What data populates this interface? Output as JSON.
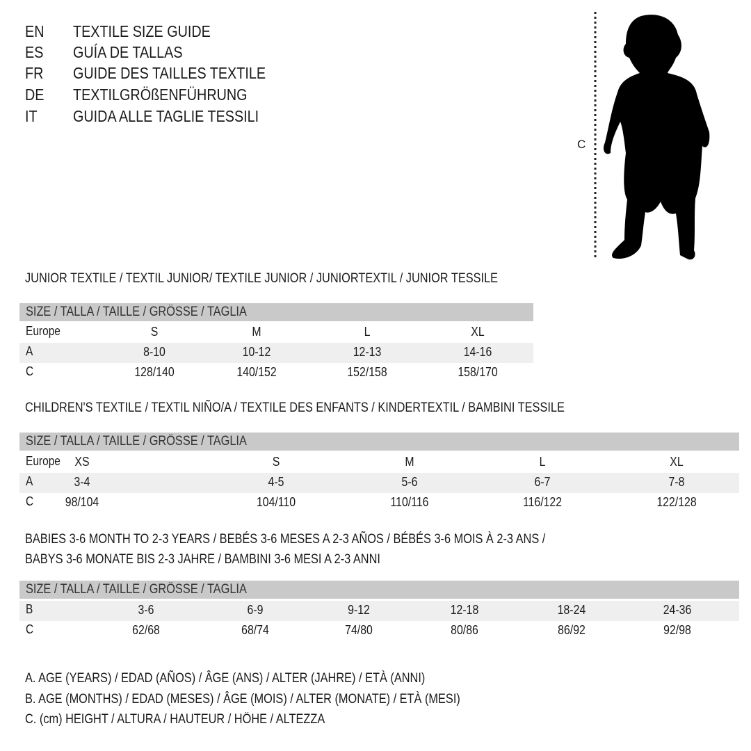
{
  "header": {
    "languages": [
      {
        "code": "EN",
        "title": "TEXTILE SIZE GUIDE"
      },
      {
        "code": "ES",
        "title": "GUÍA DE TALLAS"
      },
      {
        "code": "FR",
        "title": "GUIDE DES TAILLES TEXTILE"
      },
      {
        "code": "DE",
        "title": "TEXTILGRÖßENFÜHRUNG"
      },
      {
        "code": "IT",
        "title": "GUIDA ALLE TAGLIE TESSILI"
      }
    ]
  },
  "figure": {
    "measure_label": "C",
    "icon": "child-silhouette-icon"
  },
  "colors": {
    "header_bar": "#c9c9c9",
    "alt_row": "#efefef",
    "text": "#1a1a1a"
  },
  "tables": [
    {
      "title": "JUNIOR TEXTILE / TEXTIL JUNIOR/ TEXTILE JUNIOR / JUNIORTEXTIL / JUNIOR TESSILE",
      "size_header": "SIZE / TALLA / TAILLE / GRÖSSE / TAGLIA",
      "rows": [
        {
          "label": "Europe",
          "values": [
            "S",
            "M",
            "L",
            "XL"
          ]
        },
        {
          "label": "A",
          "values": [
            "8-10",
            "10-12",
            "12-13",
            "14-16"
          ]
        },
        {
          "label": "C",
          "values": [
            "128/140",
            "140/152",
            "152/158",
            "158/170"
          ]
        }
      ]
    },
    {
      "title": "CHILDREN'S TEXTILE / TEXTIL NIÑO/A / TEXTILE DES ENFANTS / KINDERTEXTIL / BAMBINI TESSILE",
      "size_header": "SIZE / TALLA / TAILLE / GRÖSSE / TAGLIA",
      "rows": [
        {
          "label": "Europe",
          "values": [
            "XS",
            "S",
            "M",
            "L",
            "XL"
          ]
        },
        {
          "label": "A",
          "values": [
            "3-4",
            "4-5",
            "5-6",
            "6-7",
            "7-8"
          ]
        },
        {
          "label": "C",
          "values": [
            "98/104",
            "104/110",
            "110/116",
            "116/122",
            "122/128"
          ]
        }
      ]
    },
    {
      "title": "BABIES 3-6 MONTH TO 2-3 YEARS / BEBÉS 3-6 MESES A 2-3 AÑOS / BÉBÉS 3-6 MOIS À 2-3 ANS /",
      "title_line2": "BABYS 3-6 MONATE BIS 2-3 JAHRE / BAMBINI 3-6 MESI A 2-3 ANNI",
      "size_header": "SIZE / TALLA / TAILLE / GRÖSSE / TAGLIA",
      "rows": [
        {
          "label": "B",
          "values": [
            "3-6",
            "6-9",
            "9-12",
            "12-18",
            "18-24",
            "24-36"
          ]
        },
        {
          "label": "C",
          "values": [
            "62/68",
            "68/74",
            "74/80",
            "80/86",
            "86/92",
            "92/98"
          ]
        }
      ]
    }
  ],
  "legend": [
    "A. AGE (YEARS) / EDAD (AÑOS) / ÂGE (ANS) / ALTER (JAHRE) / ETÀ (ANNI)",
    "B. AGE (MONTHS) / EDAD (MESES) / ÂGE (MOIS) / ALTER (MONATE) / ETÀ (MESI)",
    "C. (cm) HEIGHT / ALTURA / HAUTEUR / HÖHE / ALTEZZA"
  ]
}
